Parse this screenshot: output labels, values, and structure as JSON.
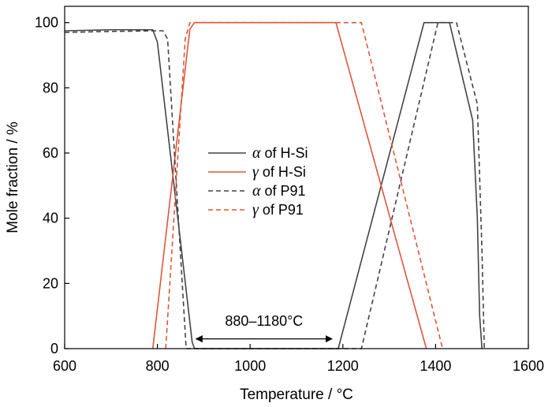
{
  "chart_data": {
    "type": "line",
    "title": "",
    "xlabel": "Temperature / °C",
    "ylabel": "Mole fraction / %",
    "xlim": [
      600,
      1600
    ],
    "ylim": [
      0,
      105
    ],
    "xticks": [
      600,
      800,
      1000,
      1200,
      1400,
      1600
    ],
    "yticks": [
      0,
      20,
      40,
      60,
      80,
      100
    ],
    "grid": false,
    "legend_position": "center-left",
    "series": [
      {
        "name": "α of H-Si",
        "symbol": "α",
        "suffix": " of H-Si",
        "color": "#444444",
        "dash": "solid",
        "x": [
          600,
          700,
          790,
          800,
          875,
          880,
          1180,
          1190,
          1375,
          1380,
          1425,
          1430,
          1480,
          1490,
          1495,
          1500
        ],
        "y": [
          97.5,
          97.8,
          97.8,
          94,
          2,
          0,
          0,
          0,
          100,
          100,
          100,
          100,
          70,
          40,
          10,
          0
        ]
      },
      {
        "name": "γ of H-Si",
        "symbol": "γ",
        "suffix": " of H-Si",
        "color": "#e0553a",
        "dash": "solid",
        "x": [
          790,
          870,
          880,
          1185,
          1380
        ],
        "y": [
          0,
          98,
          100,
          100,
          0
        ]
      },
      {
        "name": "α of P91",
        "symbol": "α",
        "suffix": " of P91",
        "color": "#444444",
        "dash": "dashed",
        "x": [
          600,
          700,
          800,
          812,
          822,
          862,
          1235,
          1240,
          1405,
          1445,
          1490,
          1500,
          1505
        ],
        "y": [
          97,
          97.3,
          97.5,
          97.5,
          95,
          0,
          0,
          0,
          100,
          100,
          75,
          30,
          0
        ]
      },
      {
        "name": "γ of P91",
        "symbol": "γ",
        "suffix": " of P91",
        "color": "#e0553a",
        "dash": "dashed",
        "x": [
          818,
          860,
          870,
          1230,
          1240,
          1415
        ],
        "y": [
          0,
          95,
          100,
          100,
          100,
          0
        ]
      }
    ],
    "annotations": [
      {
        "text": "880–1180°C",
        "type": "double-arrow",
        "x_start": 880,
        "x_end": 1180,
        "y": 3,
        "label_y": 7.5
      }
    ]
  }
}
